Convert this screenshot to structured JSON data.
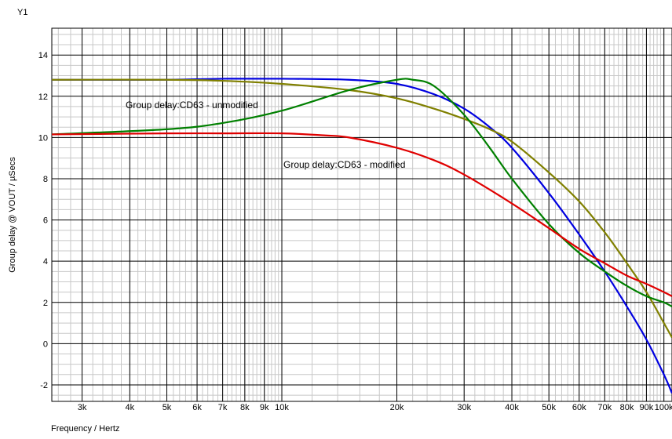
{
  "chart_data": {
    "type": "line",
    "x_scale": "log",
    "xlabel": "Frequency / Hertz",
    "ylabel": "Group delay @ VOUT / µSecs",
    "y_axis_name": "Y1",
    "xlim": [
      2500,
      105000
    ],
    "ylim": [
      -2.8,
      15.3
    ],
    "grid": true,
    "x_ticks": [
      {
        "value": 3000,
        "label": "3k"
      },
      {
        "value": 4000,
        "label": "4k"
      },
      {
        "value": 5000,
        "label": "5k"
      },
      {
        "value": 6000,
        "label": "6k"
      },
      {
        "value": 7000,
        "label": "7k"
      },
      {
        "value": 8000,
        "label": "8k"
      },
      {
        "value": 9000,
        "label": "9k"
      },
      {
        "value": 10000,
        "label": "10k"
      },
      {
        "value": 20000,
        "label": "20k"
      },
      {
        "value": 30000,
        "label": "30k"
      },
      {
        "value": 40000,
        "label": "40k"
      },
      {
        "value": 50000,
        "label": "50k"
      },
      {
        "value": 60000,
        "label": "60k"
      },
      {
        "value": 70000,
        "label": "70k"
      },
      {
        "value": 80000,
        "label": "80k"
      },
      {
        "value": 90000,
        "label": "90k"
      },
      {
        "value": 100000,
        "label": "100k"
      }
    ],
    "y_ticks": [
      -2,
      0,
      2,
      4,
      6,
      8,
      10,
      12,
      14
    ],
    "annotations": [
      {
        "text": "Group delay:CD63 - unmodified"
      },
      {
        "text": "Group delay:CD63 - modified"
      }
    ],
    "series": [
      {
        "color": "#0000e0",
        "x": [
          2500,
          5000,
          7000,
          10000,
          15000,
          20000,
          25000,
          30000,
          35000,
          40000,
          50000,
          60000,
          70000,
          80000,
          90000,
          100000,
          105000
        ],
        "y": [
          12.8,
          12.8,
          12.85,
          12.85,
          12.8,
          12.6,
          12.1,
          11.4,
          10.5,
          9.5,
          7.3,
          5.3,
          3.5,
          1.8,
          0.2,
          -1.5,
          -2.4
        ]
      },
      {
        "color": "#808000",
        "x": [
          2500,
          5000,
          7000,
          10000,
          15000,
          20000,
          25000,
          30000,
          35000,
          40000,
          50000,
          60000,
          70000,
          80000,
          90000,
          100000,
          105000
        ],
        "y": [
          12.8,
          12.8,
          12.75,
          12.6,
          12.3,
          11.9,
          11.4,
          10.9,
          10.4,
          9.8,
          8.3,
          6.9,
          5.4,
          3.9,
          2.5,
          1.0,
          0.3
        ]
      },
      {
        "color": "#008000",
        "x": [
          2500,
          5000,
          7000,
          10000,
          15000,
          20000,
          22000,
          25000,
          30000,
          35000,
          40000,
          50000,
          60000,
          70000,
          80000,
          90000,
          100000,
          105000
        ],
        "y": [
          10.15,
          10.4,
          10.7,
          11.3,
          12.3,
          12.8,
          12.8,
          12.5,
          11.1,
          9.5,
          8.0,
          5.8,
          4.4,
          3.5,
          2.8,
          2.3,
          2.0,
          1.8
        ]
      },
      {
        "color": "#e00000",
        "x": [
          2500,
          5000,
          7000,
          10000,
          13000,
          15000,
          20000,
          25000,
          30000,
          40000,
          50000,
          60000,
          70000,
          80000,
          90000,
          100000,
          105000
        ],
        "y": [
          10.15,
          10.2,
          10.2,
          10.2,
          10.1,
          10.0,
          9.5,
          8.9,
          8.2,
          6.8,
          5.6,
          4.6,
          3.9,
          3.3,
          2.9,
          2.5,
          2.3
        ]
      }
    ]
  }
}
